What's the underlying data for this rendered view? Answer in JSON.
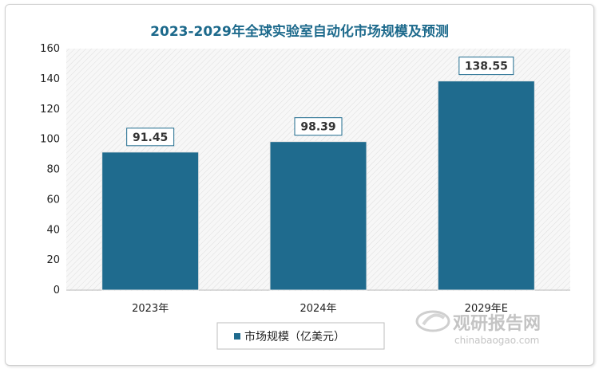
{
  "chart_data": {
    "type": "bar",
    "title": "2023-2029年全球实验室自动化市场规模及预测",
    "categories": [
      "2023年",
      "2024年",
      "2029年E"
    ],
    "series": [
      {
        "name": "市场规模（亿美元）",
        "values": [
          91.45,
          98.39,
          138.55
        ]
      }
    ],
    "data_labels": [
      "91.45",
      "98.39",
      "138.55"
    ],
    "ylim": [
      0,
      160
    ],
    "yticks": [
      0,
      20,
      40,
      60,
      80,
      100,
      120,
      140,
      160
    ],
    "ytick_labels": [
      "0",
      "20",
      "40",
      "60",
      "80",
      "100",
      "120",
      "140",
      "160"
    ],
    "grid": false,
    "legend_position": "bottom-center",
    "colors": {
      "bar": "#1f6b8e",
      "title": "#1d6a8c",
      "label_border": "#1f6b8e"
    }
  },
  "watermark": {
    "name": "观研报告网",
    "url": "chinabaogao.com"
  }
}
